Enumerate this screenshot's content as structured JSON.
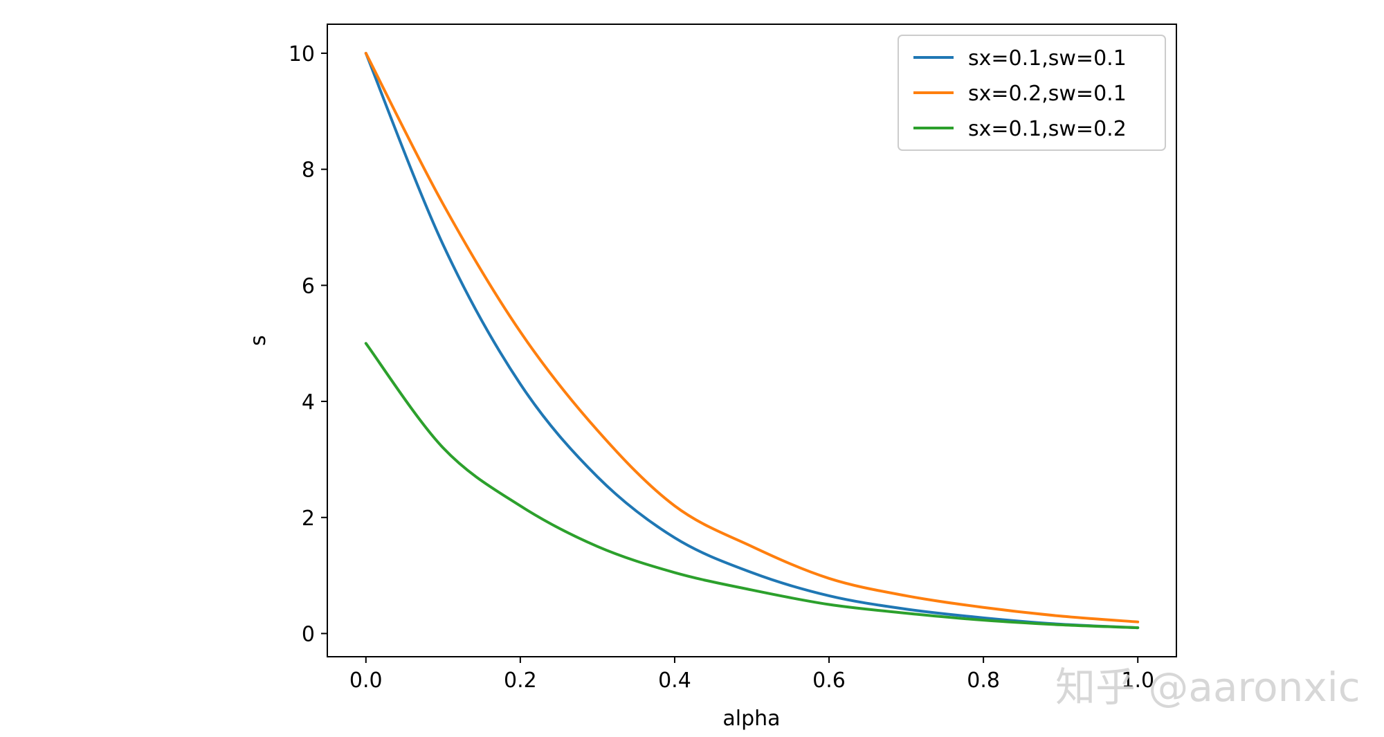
{
  "chart_data": {
    "type": "line",
    "title": "",
    "xlabel": "alpha",
    "ylabel": "s",
    "xlim": [
      -0.05,
      1.05
    ],
    "ylim": [
      -0.4,
      10.5
    ],
    "x_ticks": [
      0.0,
      0.2,
      0.4,
      0.6,
      0.8,
      1.0
    ],
    "x_tick_labels": [
      "0.0",
      "0.2",
      "0.4",
      "0.6",
      "0.8",
      "1.0"
    ],
    "y_ticks": [
      0,
      2,
      4,
      6,
      8,
      10
    ],
    "y_tick_labels": [
      "0",
      "2",
      "4",
      "6",
      "8",
      "10"
    ],
    "grid": false,
    "legend_position": "top-right",
    "x": [
      0.0,
      0.1,
      0.2,
      0.3,
      0.4,
      0.5,
      0.6,
      0.7,
      0.8,
      0.9,
      1.0
    ],
    "series": [
      {
        "name": "sx=0.1,sw=0.1",
        "color": "#1f77b4",
        "values": [
          10.0,
          6.7,
          4.3,
          2.7,
          1.65,
          1.05,
          0.65,
          0.42,
          0.27,
          0.16,
          0.1
        ]
      },
      {
        "name": "sx=0.2,sw=0.1",
        "color": "#ff7f0e",
        "values": [
          10.0,
          7.4,
          5.2,
          3.5,
          2.2,
          1.5,
          0.95,
          0.65,
          0.45,
          0.3,
          0.2
        ]
      },
      {
        "name": "sx=0.1,sw=0.2",
        "color": "#2ca02c",
        "values": [
          5.0,
          3.2,
          2.2,
          1.5,
          1.05,
          0.75,
          0.5,
          0.35,
          0.23,
          0.15,
          0.1
        ]
      }
    ]
  },
  "watermark": {
    "text": "知乎 @aaronxic"
  }
}
